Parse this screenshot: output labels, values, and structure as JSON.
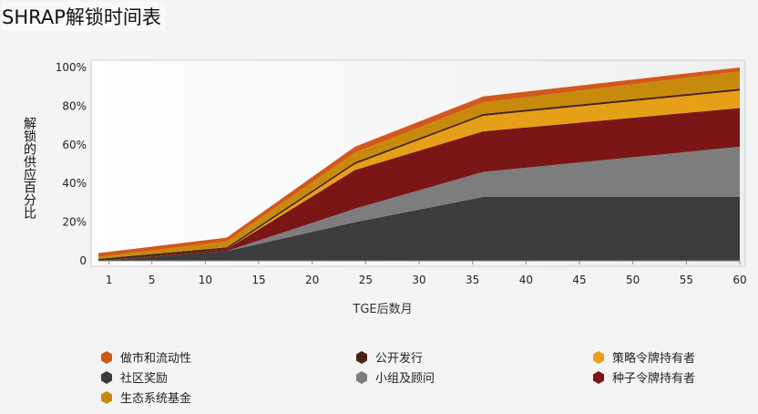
{
  "title": "SHRAP解锁时间表",
  "chart_data": {
    "type": "area",
    "stacked": true,
    "xlabel": "TGE后数月",
    "ylabel": "解锁的供应百分比",
    "x_ticks": [
      1,
      5,
      10,
      15,
      20,
      25,
      30,
      35,
      40,
      45,
      50,
      55,
      60
    ],
    "y_ticks": [
      "0",
      "20%",
      "40%",
      "60%",
      "80%",
      "100%"
    ],
    "xlim": [
      0,
      60
    ],
    "ylim": [
      0,
      100
    ],
    "x": [
      0,
      12,
      24,
      36,
      60
    ],
    "series": [
      {
        "name": "社区奖励",
        "color": "#3c3c3c",
        "values": [
          0,
          5,
          20,
          33,
          33
        ]
      },
      {
        "name": "小组及顾问",
        "color": "#7d7d7d",
        "values": [
          0,
          0,
          7,
          13,
          26
        ]
      },
      {
        "name": "种子令牌持有者",
        "color": "#7a1616",
        "values": [
          0,
          1,
          20,
          21,
          20
        ]
      },
      {
        "name": "策略令牌持有者",
        "color": "#e6a017",
        "values": [
          0,
          0,
          3,
          8,
          9
        ]
      },
      {
        "name": "公开发行",
        "color": "#4a2310",
        "values": [
          1,
          1,
          1,
          1,
          1
        ]
      },
      {
        "name": "生态系统基金",
        "color": "#c88a0c",
        "values": [
          1,
          3,
          5,
          6,
          9
        ]
      },
      {
        "name": "做市和流动性",
        "color": "#d2581b",
        "values": [
          2,
          2,
          3,
          3,
          2
        ]
      }
    ],
    "legend_position": "bottom",
    "grid": false
  },
  "legend": [
    {
      "label": "做市和流动性",
      "color": "#d2581b"
    },
    {
      "label": "公开发行",
      "color": "#4a2310"
    },
    {
      "label": "策略令牌持有者",
      "color": "#e6a017"
    },
    {
      "label": "社区奖励",
      "color": "#3c3c3c"
    },
    {
      "label": "小组及顾问",
      "color": "#7d7d7d"
    },
    {
      "label": "种子令牌持有者",
      "color": "#7a1616"
    },
    {
      "label": "生态系统基金",
      "color": "#c88a0c"
    }
  ]
}
